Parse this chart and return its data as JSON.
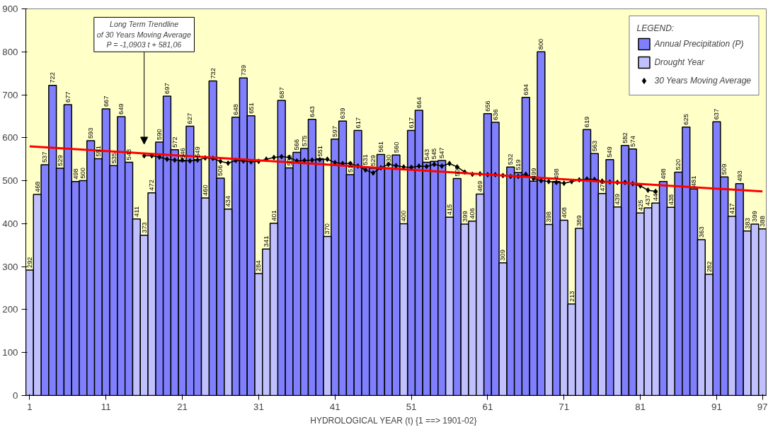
{
  "chart_data": {
    "type": "bar",
    "xlabel": "HYDROLOGICAL YEAR (t)   {1 ==> 1901-02}",
    "legend_title": "LEGEND:",
    "x": [
      1,
      2,
      3,
      4,
      5,
      6,
      7,
      8,
      9,
      10,
      11,
      12,
      13,
      14,
      15,
      16,
      17,
      18,
      19,
      20,
      21,
      22,
      23,
      24,
      25,
      26,
      27,
      28,
      29,
      30,
      31,
      32,
      33,
      34,
      35,
      36,
      37,
      38,
      39,
      40,
      41,
      42,
      43,
      44,
      45,
      46,
      47,
      48,
      49,
      50,
      51,
      52,
      53,
      54,
      55,
      56,
      57,
      58,
      59,
      60,
      61,
      62,
      63,
      64,
      65,
      66,
      67,
      68,
      69,
      70,
      71,
      72,
      73,
      74,
      75,
      76,
      77,
      78,
      79,
      80,
      81,
      82,
      83,
      84,
      85,
      86,
      87,
      88,
      89,
      90,
      91,
      92,
      93,
      94,
      95,
      96,
      97
    ],
    "series": [
      {
        "name": "Annual Precipitation (P)",
        "color": "#8080ff",
        "values": [
          null,
          null,
          537,
          722,
          529,
          677,
          498,
          500,
          593,
          551,
          667,
          535,
          649,
          543,
          null,
          null,
          null,
          590,
          697,
          572,
          546,
          627,
          549,
          null,
          732,
          506,
          null,
          648,
          739,
          651,
          null,
          null,
          null,
          687,
          530,
          566,
          575,
          643,
          551,
          null,
          597,
          639,
          514,
          617,
          531,
          529,
          561,
          530,
          560,
          null,
          617,
          664,
          543,
          545,
          547,
          null,
          505,
          null,
          null,
          null,
          656,
          636,
          null,
          532,
          519,
          694,
          499,
          800,
          null,
          498,
          null,
          null,
          null,
          619,
          563,
          null,
          549,
          null,
          582,
          574,
          null,
          null,
          null,
          498,
          null,
          520,
          625,
          481,
          null,
          null,
          637,
          509,
          null,
          493,
          null,
          null,
          null
        ],
        "value_labels": [
          null,
          null,
          "537",
          "722",
          "529",
          "677",
          "498",
          "500",
          "593",
          "551",
          "667",
          "535",
          "649",
          "543",
          null,
          null,
          null,
          "590",
          "697",
          "572",
          "546",
          "627",
          "549",
          null,
          "732",
          "506",
          null,
          "648",
          "739",
          "651",
          null,
          null,
          null,
          "687",
          "530",
          "566",
          "575",
          "643",
          "551",
          null,
          "597",
          "639",
          "514",
          "617",
          "531",
          "529",
          "561",
          "530",
          "560",
          null,
          "617",
          "664",
          "543",
          "545",
          "547",
          null,
          "505",
          null,
          null,
          null,
          "656",
          "636",
          null,
          "532",
          "519",
          "694",
          "499",
          "800",
          null,
          "498",
          null,
          null,
          null,
          "619",
          "563",
          null,
          "549",
          null,
          "582",
          "574",
          null,
          null,
          null,
          "498",
          null,
          "520",
          "625",
          "481",
          null,
          null,
          "637",
          "509",
          null,
          "493",
          null,
          null,
          null
        ]
      },
      {
        "name": "Drought Year",
        "color": "#c0c0ff",
        "values": [
          292,
          468,
          null,
          null,
          null,
          null,
          null,
          null,
          null,
          null,
          null,
          null,
          null,
          null,
          411,
          373,
          472,
          null,
          null,
          null,
          null,
          null,
          null,
          460,
          null,
          null,
          434,
          null,
          null,
          null,
          284,
          341,
          401,
          null,
          null,
          null,
          null,
          null,
          null,
          370,
          null,
          null,
          null,
          null,
          null,
          null,
          null,
          null,
          null,
          400,
          null,
          null,
          null,
          null,
          null,
          415,
          null,
          399,
          406,
          469,
          null,
          null,
          309,
          null,
          null,
          null,
          null,
          null,
          398,
          null,
          408,
          213,
          389,
          null,
          null,
          470,
          null,
          439,
          null,
          null,
          425,
          437,
          448,
          null,
          438,
          null,
          null,
          null,
          363,
          282,
          null,
          null,
          417,
          null,
          383,
          399,
          388
        ],
        "value_labels": [
          "292",
          "468",
          null,
          null,
          null,
          null,
          null,
          null,
          null,
          null,
          null,
          null,
          null,
          null,
          "411",
          "373",
          "472",
          null,
          null,
          null,
          null,
          null,
          null,
          "460",
          null,
          null,
          "434",
          null,
          null,
          null,
          "284",
          "341",
          "401",
          null,
          null,
          null,
          null,
          null,
          null,
          "370",
          null,
          null,
          null,
          null,
          null,
          null,
          null,
          null,
          null,
          "400",
          null,
          null,
          null,
          null,
          null,
          "415",
          null,
          "399",
          "406",
          "469",
          null,
          null,
          "309",
          null,
          null,
          null,
          null,
          null,
          "398",
          null,
          "408",
          "213",
          "389",
          null,
          null,
          "470",
          null,
          "439",
          null,
          null,
          "425",
          "437",
          "448",
          null,
          "438",
          null,
          null,
          null,
          "363",
          "282",
          null,
          null,
          "417",
          null,
          "383",
          "399",
          "388"
        ]
      },
      {
        "name": "30 Years Moving Average",
        "type": "line",
        "color": "#000000",
        "marker": "diamond",
        "x": [
          16,
          17,
          18,
          19,
          20,
          21,
          22,
          23,
          24,
          25,
          26,
          27,
          28,
          29,
          30,
          31,
          32,
          33,
          34,
          35,
          36,
          37,
          38,
          39,
          40,
          41,
          42,
          43,
          44,
          45,
          46,
          47,
          48,
          49,
          50,
          51,
          52,
          53,
          54,
          55,
          56,
          57,
          58,
          59,
          60,
          61,
          62,
          63,
          64,
          65,
          66,
          67,
          68,
          69,
          70,
          71,
          72,
          73,
          74,
          75,
          76,
          77,
          78,
          79,
          80,
          81,
          82,
          83
        ],
        "values": [
          558,
          558,
          555,
          550,
          548,
          548,
          546,
          548,
          553,
          552,
          545,
          541,
          547,
          546,
          544,
          545,
          550,
          554,
          556,
          554,
          546,
          547,
          548,
          549,
          550,
          542,
          540,
          540,
          534,
          525,
          518,
          530,
          538,
          535,
          532,
          531,
          534,
          533,
          538,
          534,
          540,
          532,
          520,
          515,
          516,
          514,
          514,
          512,
          510,
          510,
          515,
          505,
          500,
          498,
          496,
          494,
          498,
          502,
          504,
          503,
          499,
          497,
          496,
          496,
          493,
          488,
          478,
          475
        ]
      },
      {
        "type": "line",
        "color": "#ff0000",
        "x": [
          1,
          97
        ],
        "values": [
          580,
          475
        ]
      }
    ],
    "annotations": [
      "Long Term Trendline\nof 30 Years Moving Average\nP = -1,0903 t + 581,06"
    ],
    "xlim": [
      0.5,
      97.5
    ],
    "xticks": [
      1,
      11,
      21,
      31,
      41,
      51,
      61,
      71,
      81,
      91,
      97
    ],
    "ylim": [
      0,
      900
    ],
    "yticks": [
      0,
      100,
      200,
      300,
      400,
      500,
      600,
      700,
      800,
      900
    ],
    "grid": false,
    "legend": "top right"
  }
}
